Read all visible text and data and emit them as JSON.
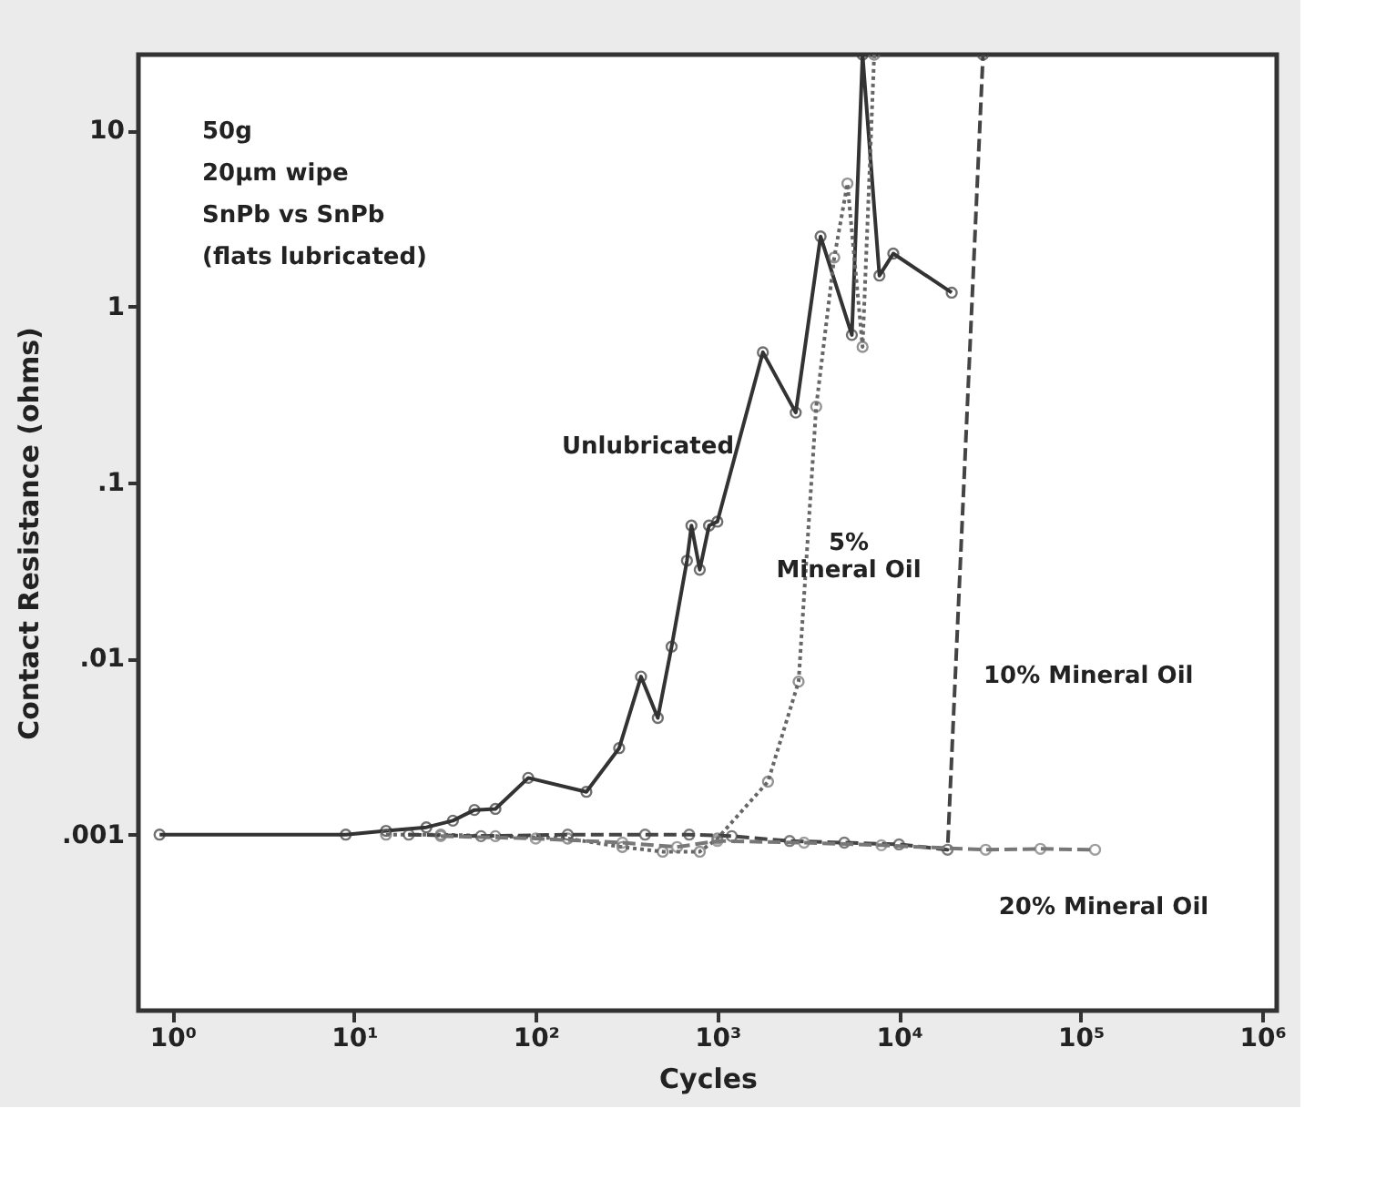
{
  "chart_data": {
    "type": "line",
    "xlabel": "Cycles",
    "ylabel": "Contact Resistance (ohms)",
    "log": "xy",
    "grid": false,
    "marker": "circle",
    "xlim": [
      0.65,
      1200000
    ],
    "ylim": [
      0.0001,
      27
    ],
    "xticks": [
      {
        "value": 1,
        "label": "10⁰"
      },
      {
        "value": 10,
        "label": "10¹"
      },
      {
        "value": 100,
        "label": "10²"
      },
      {
        "value": 1000,
        "label": "10³"
      },
      {
        "value": 10000,
        "label": "10⁴"
      },
      {
        "value": 100000,
        "label": "10⁵"
      },
      {
        "value": 1000000,
        "label": "10⁶"
      }
    ],
    "yticks": [
      {
        "value": 0.001,
        "label": ".001"
      },
      {
        "value": 0.01,
        "label": ".01"
      },
      {
        "value": 0.1,
        "label": ".1"
      },
      1,
      10
    ],
    "annotations": [
      "50g",
      "20μm wipe",
      "SnPb vs SnPb",
      "(flats lubricated)"
    ],
    "series": [
      {
        "name": "Unlubricated",
        "color": "#333333",
        "line_style": "solid",
        "x": [
          0.85,
          9,
          15,
          25,
          35,
          46,
          60,
          91,
          190,
          288,
          380,
          470,
          560,
          680,
          720,
          800,
          900,
          1000,
          1780,
          2700,
          3700,
          5500,
          6300,
          7800,
          9300,
          19500
        ],
        "values": [
          0.001,
          0.001,
          0.00105,
          0.0011,
          0.0012,
          0.00138,
          0.0014,
          0.0021,
          0.00175,
          0.0031,
          0.0079,
          0.0046,
          0.0117,
          0.036,
          0.057,
          0.032,
          0.057,
          0.06,
          0.55,
          0.25,
          2.5,
          0.69,
          27,
          1.5,
          2.0,
          1.2
        ]
      },
      {
        "name": "5% Mineral Oil",
        "color": "#666666",
        "line_style": "dotted",
        "x": [
          15,
          30,
          60,
          150,
          300,
          500,
          800,
          1000,
          1900,
          2800,
          3500,
          4400,
          5200,
          6300,
          7300
        ],
        "values": [
          0.001,
          0.001,
          0.00098,
          0.00095,
          0.00085,
          0.0008,
          0.0008,
          0.00095,
          0.002,
          0.0074,
          0.27,
          1.9,
          5,
          0.59,
          27
        ]
      },
      {
        "name": "10% Mineral Oil",
        "color": "#444444",
        "line_style": "dashed",
        "x": [
          20,
          50,
          150,
          400,
          700,
          1200,
          2500,
          5000,
          10000,
          18500,
          29000
        ],
        "values": [
          0.001,
          0.00098,
          0.001,
          0.001,
          0.001,
          0.00098,
          0.00092,
          0.0009,
          0.00088,
          0.00082,
          27
        ]
      },
      {
        "name": "20% Mineral Oil",
        "color": "#777777",
        "line_style": "dashed",
        "x": [
          30,
          100,
          300,
          600,
          1000,
          3000,
          8000,
          30000,
          60000,
          120000
        ],
        "values": [
          0.00098,
          0.00095,
          0.0009,
          0.00085,
          0.00092,
          0.0009,
          0.00087,
          0.00082,
          0.00083,
          0.00082
        ]
      }
    ]
  }
}
